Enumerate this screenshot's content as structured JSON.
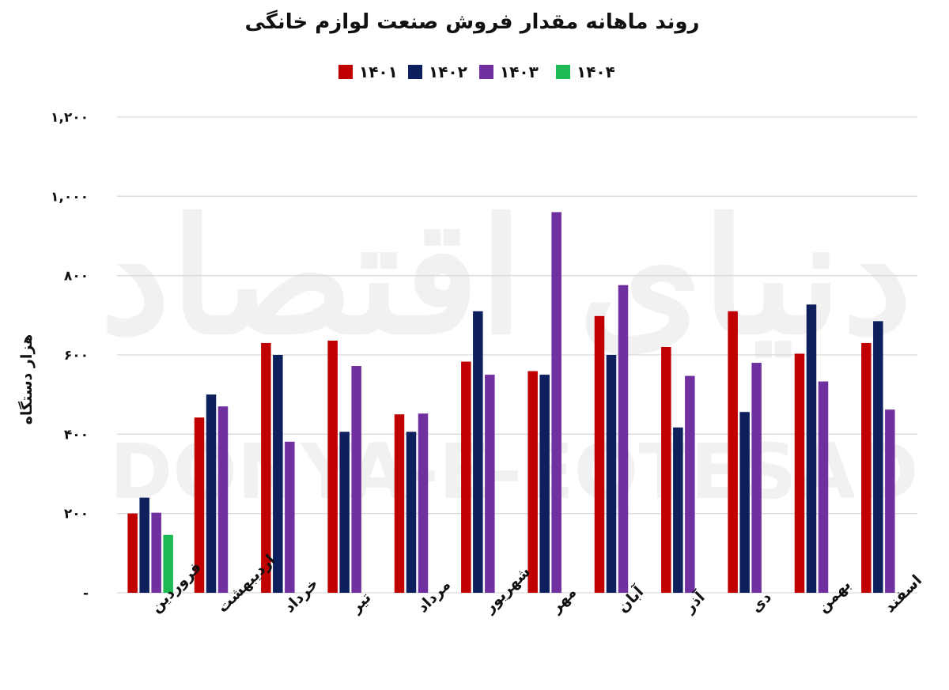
{
  "watermark": {
    "fa": "دنیای اقتصاد",
    "en": "DONYA-E-EQTESAD"
  },
  "chart_data": {
    "type": "bar",
    "title": "روند ماهانه مقدار فروش صنعت لوازم خانگی",
    "ylabel": "هزار دستگاه",
    "xlabel": "",
    "ylim": [
      0,
      1200
    ],
    "yticks": [
      0,
      200,
      400,
      600,
      800,
      1000,
      1200
    ],
    "ytick_labels": [
      "-",
      "۲۰۰",
      "۴۰۰",
      "۶۰۰",
      "۸۰۰",
      "۱,۰۰۰",
      "۱,۲۰۰"
    ],
    "grid": true,
    "legend_position": "top-center",
    "categories": [
      "فروردین",
      "اردیبهشت",
      "خرداد",
      "تیر",
      "مرداد",
      "شهریور",
      "مهر",
      "آبان",
      "آذر",
      "دی",
      "بهمن",
      "اسفند"
    ],
    "series": [
      {
        "name": "۱۴۰۱",
        "color": "#C00000",
        "values": [
          200,
          442,
          630,
          636,
          450,
          583,
          559,
          698,
          620,
          710,
          603,
          630
        ]
      },
      {
        "name": "۱۴۰۲",
        "color": "#0D1F5C",
        "values": [
          240,
          500,
          600,
          406,
          406,
          710,
          550,
          600,
          417,
          456,
          727,
          685
        ]
      },
      {
        "name": "۱۴۰۳",
        "color": "#7030A0",
        "values": [
          202,
          470,
          381,
          572,
          452,
          550,
          960,
          776,
          547,
          580,
          533,
          462
        ]
      },
      {
        "name": "۱۴۰۴",
        "color": "#1DB954",
        "values": [
          146,
          null,
          null,
          null,
          null,
          null,
          null,
          null,
          null,
          null,
          null,
          null
        ]
      }
    ]
  }
}
